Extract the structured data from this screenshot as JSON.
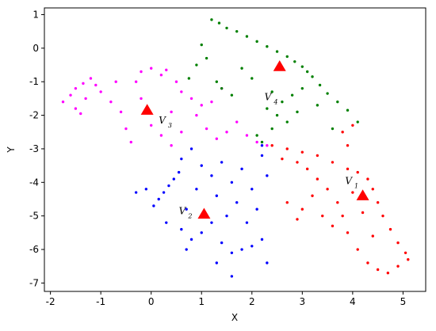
{
  "chart_data": {
    "type": "scatter",
    "x_label": "X",
    "y_label": "Y",
    "xlim": [
      -2.12,
      5.45
    ],
    "ylim": [
      -7.25,
      1.2
    ],
    "xticks": [
      -2,
      -1,
      0,
      1,
      2,
      3,
      4,
      5
    ],
    "yticks": [
      -7,
      -6,
      -5,
      -4,
      -3,
      -2,
      -1,
      0,
      1
    ],
    "series": [
      {
        "color": "#ff00ff",
        "marker": "dot",
        "x": [
          -1.75,
          -1.6,
          -1.5,
          -1.35,
          -1.2,
          -1.1,
          -1.3,
          -1.5,
          -1.4,
          -1.0,
          -0.8,
          -0.6,
          -0.5,
          -0.4,
          -0.3,
          -0.2,
          0.0,
          0.2,
          0.3,
          0.5,
          0.6,
          0.8,
          1.0,
          1.2,
          0.9,
          1.1,
          1.3,
          1.5,
          1.7,
          1.9,
          2.1,
          2.3,
          0.2,
          0.4,
          0.6,
          0.0,
          -0.2,
          0.4,
          1.4,
          -0.7
        ],
        "y": [
          -1.6,
          -1.4,
          -1.2,
          -1.05,
          -0.9,
          -1.1,
          -1.5,
          -1.8,
          -1.95,
          -1.3,
          -1.6,
          -1.9,
          -2.4,
          -2.8,
          -1.0,
          -0.7,
          -0.6,
          -0.8,
          -0.65,
          -1.0,
          -1.3,
          -1.5,
          -1.7,
          -1.6,
          -2.0,
          -2.4,
          -2.7,
          -2.5,
          -2.2,
          -2.6,
          -2.8,
          -2.9,
          -2.6,
          -2.9,
          -2.5,
          -2.3,
          -1.5,
          -1.9,
          -1.2,
          -1.0
        ]
      },
      {
        "color": "#008000",
        "marker": "dot",
        "x": [
          1.2,
          1.35,
          1.5,
          1.7,
          1.9,
          2.1,
          2.3,
          2.5,
          2.7,
          2.85,
          3.0,
          3.1,
          3.2,
          3.35,
          3.5,
          3.7,
          3.9,
          4.1,
          0.9,
          0.75,
          1.1,
          1.4,
          1.6,
          1.3,
          1.8,
          2.0,
          2.4,
          2.6,
          2.8,
          3.0,
          2.3,
          2.5,
          2.7,
          2.9,
          3.3,
          2.1,
          2.2,
          2.4,
          1.0,
          3.6
        ],
        "y": [
          0.85,
          0.75,
          0.6,
          0.5,
          0.35,
          0.2,
          0.05,
          -0.1,
          -0.25,
          -0.4,
          -0.55,
          -0.7,
          -0.85,
          -1.1,
          -1.35,
          -1.6,
          -1.85,
          -2.2,
          -0.5,
          -0.9,
          -0.3,
          -1.2,
          -1.4,
          -1.0,
          -0.6,
          -0.9,
          -1.3,
          -1.6,
          -1.4,
          -1.2,
          -1.8,
          -2.0,
          -2.2,
          -1.9,
          -1.7,
          -2.6,
          -2.8,
          -2.4,
          0.1,
          -2.4
        ]
      },
      {
        "color": "#0000ff",
        "marker": "dot",
        "x": [
          -0.3,
          -0.1,
          0.05,
          0.15,
          0.25,
          0.35,
          0.45,
          0.55,
          0.6,
          0.8,
          1.0,
          1.2,
          1.4,
          1.6,
          1.8,
          2.0,
          2.2,
          2.3,
          2.1,
          1.9,
          1.7,
          1.5,
          1.3,
          0.9,
          0.7,
          0.6,
          0.8,
          1.0,
          1.2,
          1.4,
          1.6,
          1.8,
          2.0,
          2.2,
          1.6,
          1.3,
          0.7,
          2.3,
          0.3,
          2.2
        ],
        "y": [
          -4.3,
          -4.2,
          -4.7,
          -4.5,
          -4.3,
          -4.1,
          -3.9,
          -3.7,
          -3.3,
          -3.0,
          -3.5,
          -3.8,
          -3.4,
          -4.0,
          -3.6,
          -4.2,
          -3.2,
          -3.8,
          -4.8,
          -5.2,
          -4.6,
          -5.0,
          -4.4,
          -4.2,
          -4.8,
          -5.4,
          -5.7,
          -5.5,
          -5.2,
          -5.8,
          -6.1,
          -6.0,
          -5.9,
          -5.7,
          -6.8,
          -6.4,
          -6.0,
          -6.4,
          -5.2,
          -2.9
        ]
      },
      {
        "color": "#ff0000",
        "marker": "dot",
        "x": [
          2.4,
          2.7,
          3.0,
          3.3,
          3.6,
          3.9,
          4.1,
          4.3,
          4.4,
          4.5,
          4.6,
          4.75,
          4.9,
          5.05,
          5.1,
          4.9,
          4.7,
          4.5,
          4.3,
          4.1,
          3.9,
          3.8,
          3.7,
          3.5,
          3.3,
          3.1,
          2.9,
          2.6,
          3.2,
          3.0,
          2.9,
          2.7,
          3.4,
          3.6,
          4.0,
          4.2,
          4.4,
          3.8,
          3.9,
          4.0
        ],
        "y": [
          -2.9,
          -3.0,
          -3.1,
          -3.2,
          -3.4,
          -3.6,
          -3.7,
          -3.9,
          -4.2,
          -4.6,
          -5.0,
          -5.4,
          -5.8,
          -6.1,
          -6.3,
          -6.5,
          -6.7,
          -6.6,
          -6.4,
          -6.0,
          -5.5,
          -5.0,
          -4.6,
          -4.2,
          -3.9,
          -3.6,
          -3.4,
          -3.3,
          -4.4,
          -4.8,
          -5.1,
          -4.6,
          -5.0,
          -5.3,
          -4.3,
          -4.9,
          -5.6,
          -2.5,
          -2.9,
          -2.3
        ]
      },
      {
        "color": "#ff0000",
        "marker": "triangle",
        "x": [
          -0.08,
          2.55,
          1.05,
          4.2
        ],
        "y": [
          -1.85,
          -0.55,
          -4.95,
          -4.4
        ]
      }
    ],
    "annotations": [
      {
        "text": "V",
        "sub": "3",
        "x": 0.15,
        "y": -2.25
      },
      {
        "text": "V",
        "sub": "4",
        "x": 2.25,
        "y": -1.55
      },
      {
        "text": "V",
        "sub": "2",
        "x": 0.55,
        "y": -4.95
      },
      {
        "text": "V",
        "sub": "1",
        "x": 3.85,
        "y": -4.05
      }
    ]
  }
}
